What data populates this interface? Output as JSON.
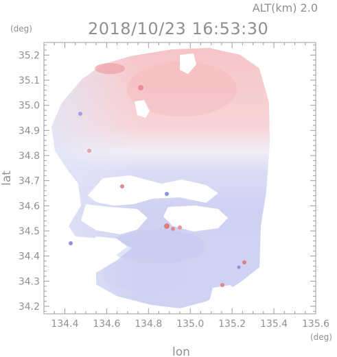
{
  "header": {
    "altitude": "ALT(km)  2.0",
    "datetime": "2018/10/23 16:53:30",
    "lat_unit": "(deg)",
    "lon_unit": "(deg)"
  },
  "axes": {
    "xlabel": "lon",
    "ylabel": "lat",
    "xlim": [
      134.3,
      135.6
    ],
    "ylim": [
      34.17,
      35.25
    ],
    "x_ticks": [
      "134.4",
      "134.6",
      "134.8",
      "135.0",
      "135.2",
      "135.4",
      "135.6"
    ],
    "y_ticks": [
      "34.2",
      "34.3",
      "34.4",
      "34.5",
      "34.6",
      "34.7",
      "34.8",
      "34.9",
      "35.0",
      "35.1",
      "35.2"
    ]
  },
  "colors": {
    "axis": "#9a9a9a",
    "text": "#8f8f8f",
    "approaching": "#c9ccf2",
    "receding": "#f6c7c9",
    "neutral": "#ededf7"
  }
}
